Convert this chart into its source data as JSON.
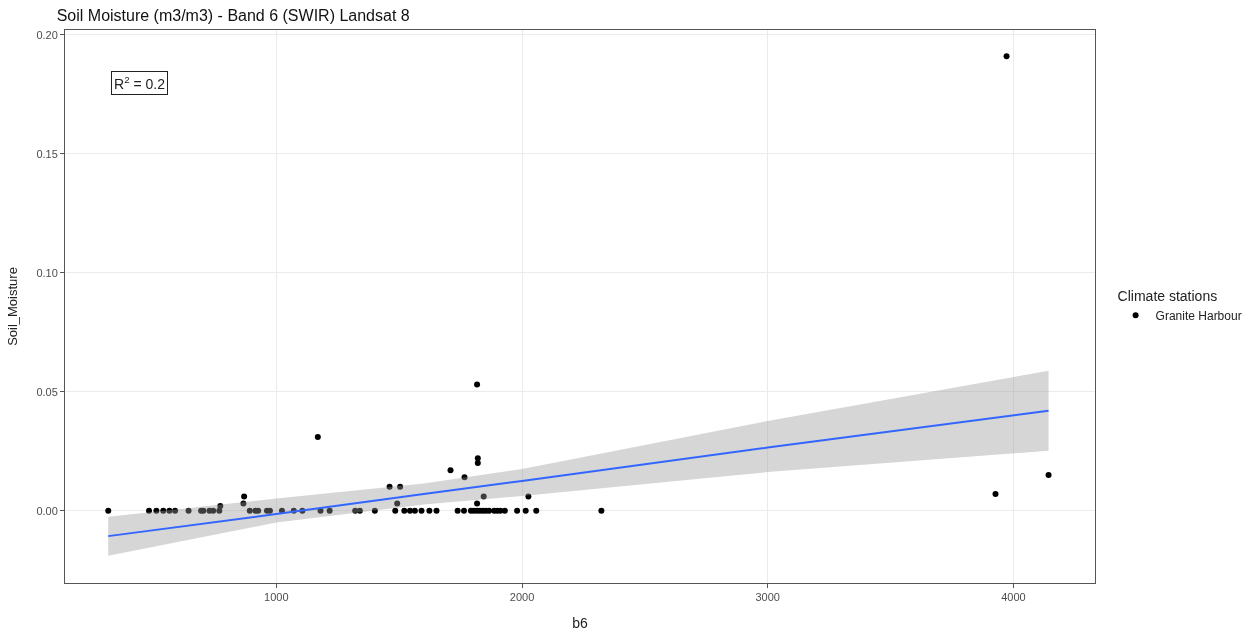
{
  "chart_data": {
    "type": "scatter",
    "title": "Soil Moisture (m3/m3) - Band 6 (SWIR) Landsat 8",
    "xlabel": "b6",
    "ylabel": "Soil_Moisture",
    "legend_title": "Climate stations",
    "annotations": [
      "R$^{2}$ = 0.2"
    ],
    "series": [
      {
        "name": "Granite Harbour",
        "color": "#000000",
        "marker": "circle",
        "x": [
          316,
          482,
          512,
          540,
          565,
          588,
          643,
          694,
          703,
          728,
          743,
          768,
          892,
          915,
          926,
          962,
          974,
          1023,
          1071,
          1106,
          1180,
          1217,
          1321,
          1340,
          1401,
          1484,
          1521,
          1544,
          1564,
          1591,
          1623,
          1652,
          1738,
          1764,
          1792,
          1804,
          1817,
          1829,
          1841,
          1853,
          1866,
          1887,
          1899,
          1912,
          1930,
          1980,
          2015,
          2058,
          2323,
          1817,
          1169,
          1709,
          1766,
          1820,
          1820,
          1461,
          1504,
          1492,
          869,
          866,
          772,
          1844,
          1817,
          2026,
          3927,
          4143,
          3972
        ],
        "values": [
          0,
          0,
          0,
          0,
          0,
          0,
          0,
          0,
          0,
          0,
          0,
          0,
          0,
          0,
          0,
          0,
          0,
          0,
          0,
          0,
          0,
          0,
          0,
          0,
          0,
          0,
          0,
          0,
          0,
          0,
          0,
          0,
          0,
          0,
          0,
          0,
          0,
          0,
          0,
          0,
          0,
          0,
          0,
          0,
          0,
          0,
          0,
          0,
          0,
          0.053,
          0.031,
          0.017,
          0.014,
          0.022,
          0.02,
          0.01,
          0.01,
          0.003,
          0.006,
          0.003,
          0.002,
          0.006,
          0.003,
          0.006,
          0.007,
          0.015,
          0.191
        ]
      },
      {
        "type": "line",
        "color": "#3366ff",
        "x": [
          316,
          1000,
          1600,
          2000,
          3000,
          4143
        ],
        "values": [
          -0.0107,
          -0.0014,
          0.007,
          0.0125,
          0.0265,
          0.042
        ],
        "lower": [
          -0.0189,
          -0.005,
          0.0026,
          0.0062,
          0.0162,
          0.0252
        ],
        "upper": [
          -0.0026,
          0.0051,
          0.0114,
          0.0175,
          0.0377,
          0.0588
        ]
      }
    ],
    "xlim": [
      140,
      4332
    ],
    "xticks": [
      1000,
      2000,
      3000,
      4000
    ],
    "ylim": [
      -0.0304,
      0.202
    ],
    "yticks": [
      {
        "value": 0,
        "label": "0.00"
      },
      {
        "value": 0.05,
        "label": "0.05"
      },
      {
        "value": 0.1,
        "label": "0.10"
      },
      {
        "value": 0.15,
        "label": "0.15"
      },
      {
        "value": 0.2,
        "label": "0.20"
      }
    ],
    "grid": true,
    "legend": "right"
  }
}
